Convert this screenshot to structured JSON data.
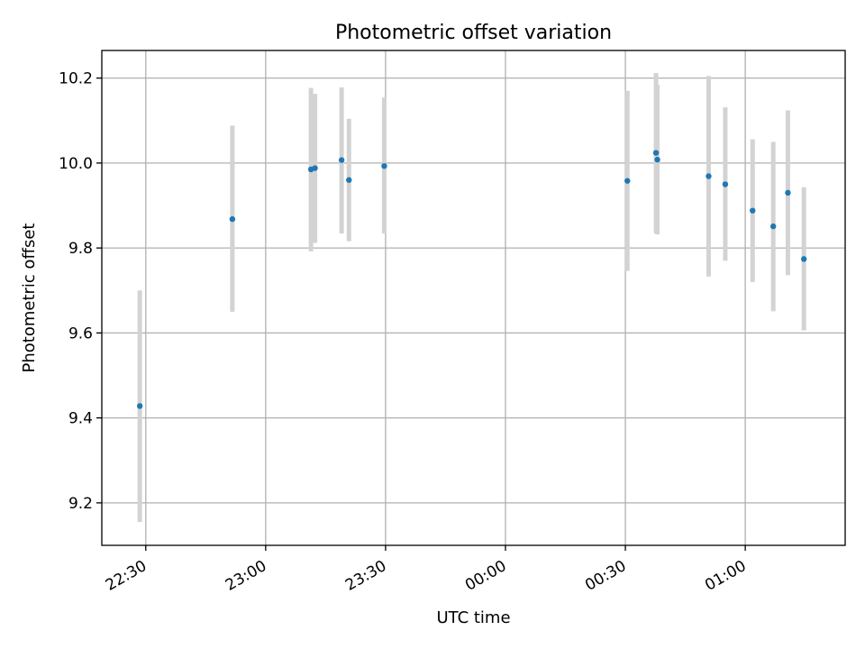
{
  "chart_data": {
    "type": "scatter",
    "title": "Photometric offset variation",
    "xlabel": "UTC time",
    "ylabel": "Photometric offset",
    "x_axis_kind": "time",
    "x_ticks": [
      "22:30",
      "23:00",
      "23:30",
      "00:00",
      "00:30",
      "01:00"
    ],
    "y_ticks": [
      "9.2",
      "9.4",
      "9.6",
      "9.8",
      "10.0",
      "10.2"
    ],
    "xlim": [
      "22:19",
      "01:25"
    ],
    "ylim": [
      9.1,
      10.265
    ],
    "grid": true,
    "marker_color": "#1f77b4",
    "errorbar_color": "#d3d3d3",
    "points": [
      {
        "x": "22:28:30",
        "y": 9.428,
        "yerr_low": 9.155,
        "yerr_high": 9.7
      },
      {
        "x": "22:51:40",
        "y": 9.868,
        "yerr_low": 9.65,
        "yerr_high": 10.088
      },
      {
        "x": "23:11:20",
        "y": 9.985,
        "yerr_low": 9.792,
        "yerr_high": 10.177
      },
      {
        "x": "23:12:20",
        "y": 9.988,
        "yerr_low": 9.812,
        "yerr_high": 10.163
      },
      {
        "x": "23:19:00",
        "y": 10.007,
        "yerr_low": 9.834,
        "yerr_high": 10.178
      },
      {
        "x": "23:20:50",
        "y": 9.96,
        "yerr_low": 9.816,
        "yerr_high": 10.104
      },
      {
        "x": "23:29:40",
        "y": 9.993,
        "yerr_low": 9.834,
        "yerr_high": 10.154
      },
      {
        "x": "00:30:30",
        "y": 9.958,
        "yerr_low": 9.746,
        "yerr_high": 10.17
      },
      {
        "x": "00:37:40",
        "y": 10.024,
        "yerr_low": 9.835,
        "yerr_high": 10.212
      },
      {
        "x": "00:38:00",
        "y": 10.008,
        "yerr_low": 9.832,
        "yerr_high": 10.184
      },
      {
        "x": "00:50:50",
        "y": 9.969,
        "yerr_low": 9.733,
        "yerr_high": 10.205
      },
      {
        "x": "00:55:00",
        "y": 9.95,
        "yerr_low": 9.77,
        "yerr_high": 10.131
      },
      {
        "x": "01:01:50",
        "y": 9.888,
        "yerr_low": 9.72,
        "yerr_high": 10.056
      },
      {
        "x": "01:07:00",
        "y": 9.851,
        "yerr_low": 9.651,
        "yerr_high": 10.05
      },
      {
        "x": "01:10:40",
        "y": 9.93,
        "yerr_low": 9.736,
        "yerr_high": 10.124
      },
      {
        "x": "01:14:40",
        "y": 9.774,
        "yerr_low": 9.606,
        "yerr_high": 9.943
      }
    ]
  }
}
